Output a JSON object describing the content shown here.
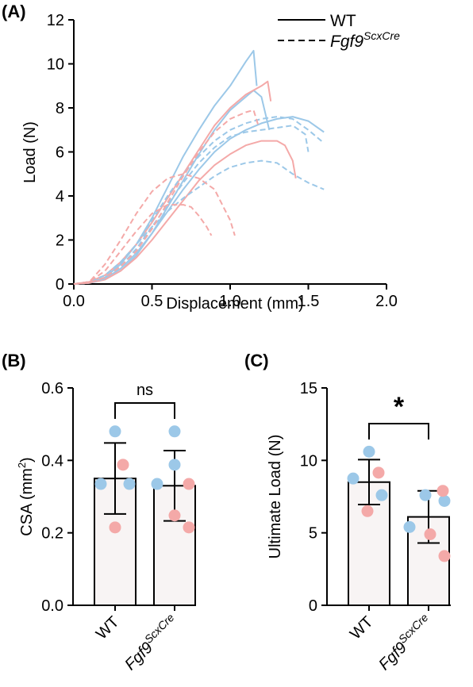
{
  "colors": {
    "blue": "#9CC8E8",
    "pink": "#F4A9A8",
    "bar_fill": "#F8F4F4",
    "axis": "#000000"
  },
  "chart_data": [
    {
      "panel": "(A)",
      "type": "line",
      "xlabel": "Displacement (mm)",
      "ylabel": "Load (N)",
      "xlim": [
        0,
        2.0
      ],
      "ylim": [
        0,
        12
      ],
      "xticks": [
        "0.0",
        "0.5",
        "1.0",
        "1.5",
        "2.0"
      ],
      "yticks": [
        "0",
        "2",
        "4",
        "6",
        "8",
        "10",
        "12"
      ],
      "legend": [
        {
          "style": "solid",
          "label": "WT"
        },
        {
          "style": "dashed",
          "label_base": "Fgf9",
          "label_sup": "ScxCre"
        }
      ],
      "series": [
        {
          "color": "blue",
          "dash": false,
          "points": [
            [
              0,
              0
            ],
            [
              0.1,
              0.05
            ],
            [
              0.2,
              0.3
            ],
            [
              0.3,
              0.9
            ],
            [
              0.4,
              1.8
            ],
            [
              0.5,
              3.0
            ],
            [
              0.6,
              4.4
            ],
            [
              0.7,
              5.8
            ],
            [
              0.8,
              7.0
            ],
            [
              0.9,
              8.1
            ],
            [
              1.0,
              9.0
            ],
            [
              1.1,
              10.1
            ],
            [
              1.15,
              10.6
            ],
            [
              1.17,
              9.0
            ]
          ]
        },
        {
          "color": "blue",
          "dash": false,
          "points": [
            [
              0,
              0
            ],
            [
              0.1,
              0.05
            ],
            [
              0.2,
              0.2
            ],
            [
              0.3,
              0.6
            ],
            [
              0.4,
              1.3
            ],
            [
              0.5,
              2.3
            ],
            [
              0.6,
              3.5
            ],
            [
              0.7,
              4.7
            ],
            [
              0.8,
              5.9
            ],
            [
              0.9,
              7.0
            ],
            [
              1.0,
              7.9
            ],
            [
              1.1,
              8.5
            ],
            [
              1.15,
              8.8
            ],
            [
              1.2,
              8.5
            ],
            [
              1.25,
              7.0
            ]
          ]
        },
        {
          "color": "blue",
          "dash": false,
          "points": [
            [
              0,
              0
            ],
            [
              0.1,
              0.05
            ],
            [
              0.2,
              0.25
            ],
            [
              0.3,
              0.7
            ],
            [
              0.4,
              1.4
            ],
            [
              0.5,
              2.3
            ],
            [
              0.6,
              3.3
            ],
            [
              0.7,
              4.3
            ],
            [
              0.8,
              5.2
            ],
            [
              0.9,
              6.0
            ],
            [
              1.0,
              6.6
            ],
            [
              1.1,
              7.0
            ],
            [
              1.2,
              7.3
            ],
            [
              1.3,
              7.5
            ],
            [
              1.4,
              7.6
            ],
            [
              1.5,
              7.4
            ],
            [
              1.6,
              6.9
            ]
          ]
        },
        {
          "color": "pink",
          "dash": false,
          "points": [
            [
              0,
              0
            ],
            [
              0.1,
              0.1
            ],
            [
              0.2,
              0.4
            ],
            [
              0.3,
              1.0
            ],
            [
              0.4,
              1.8
            ],
            [
              0.5,
              2.8
            ],
            [
              0.6,
              3.9
            ],
            [
              0.7,
              5.0
            ],
            [
              0.8,
              6.1
            ],
            [
              0.9,
              7.2
            ],
            [
              1.0,
              8.0
            ],
            [
              1.1,
              8.6
            ],
            [
              1.2,
              9.0
            ],
            [
              1.24,
              9.2
            ],
            [
              1.26,
              8.3
            ]
          ]
        },
        {
          "color": "pink",
          "dash": false,
          "points": [
            [
              0,
              0
            ],
            [
              0.1,
              0.05
            ],
            [
              0.2,
              0.2
            ],
            [
              0.3,
              0.6
            ],
            [
              0.4,
              1.2
            ],
            [
              0.5,
              2.0
            ],
            [
              0.6,
              2.9
            ],
            [
              0.7,
              3.8
            ],
            [
              0.8,
              4.7
            ],
            [
              0.9,
              5.4
            ],
            [
              1.0,
              5.9
            ],
            [
              1.1,
              6.3
            ],
            [
              1.2,
              6.5
            ],
            [
              1.3,
              6.5
            ],
            [
              1.35,
              6.3
            ],
            [
              1.4,
              5.6
            ],
            [
              1.42,
              4.8
            ]
          ]
        },
        {
          "color": "blue",
          "dash": true,
          "points": [
            [
              0,
              0
            ],
            [
              0.1,
              0.05
            ],
            [
              0.2,
              0.3
            ],
            [
              0.3,
              0.9
            ],
            [
              0.4,
              1.8
            ],
            [
              0.5,
              2.9
            ],
            [
              0.6,
              4.0
            ],
            [
              0.7,
              5.0
            ],
            [
              0.8,
              5.8
            ],
            [
              0.9,
              6.5
            ],
            [
              1.0,
              7.0
            ],
            [
              1.1,
              7.3
            ],
            [
              1.2,
              7.5
            ],
            [
              1.3,
              7.6
            ],
            [
              1.4,
              7.5
            ],
            [
              1.5,
              7.0
            ],
            [
              1.6,
              6.4
            ]
          ]
        },
        {
          "color": "blue",
          "dash": true,
          "points": [
            [
              0,
              0
            ],
            [
              0.1,
              0.05
            ],
            [
              0.2,
              0.25
            ],
            [
              0.3,
              0.8
            ],
            [
              0.4,
              1.6
            ],
            [
              0.5,
              2.6
            ],
            [
              0.6,
              3.6
            ],
            [
              0.7,
              4.6
            ],
            [
              0.8,
              5.5
            ],
            [
              0.9,
              6.2
            ],
            [
              1.0,
              6.7
            ],
            [
              1.1,
              6.9
            ],
            [
              1.2,
              7.0
            ],
            [
              1.3,
              7.1
            ],
            [
              1.4,
              7.2
            ],
            [
              1.48,
              6.8
            ],
            [
              1.5,
              6.0
            ]
          ]
        },
        {
          "color": "blue",
          "dash": true,
          "points": [
            [
              0,
              0
            ],
            [
              0.1,
              0.1
            ],
            [
              0.2,
              0.4
            ],
            [
              0.3,
              1.0
            ],
            [
              0.4,
              1.8
            ],
            [
              0.5,
              2.6
            ],
            [
              0.6,
              3.3
            ],
            [
              0.7,
              3.9
            ],
            [
              0.8,
              4.4
            ],
            [
              0.9,
              4.9
            ],
            [
              1.0,
              5.3
            ],
            [
              1.1,
              5.5
            ],
            [
              1.2,
              5.6
            ],
            [
              1.3,
              5.5
            ],
            [
              1.4,
              5.0
            ],
            [
              1.5,
              4.6
            ],
            [
              1.6,
              4.3
            ]
          ]
        },
        {
          "color": "pink",
          "dash": true,
          "points": [
            [
              0,
              0
            ],
            [
              0.1,
              0.1
            ],
            [
              0.2,
              0.9
            ],
            [
              0.3,
              2.0
            ],
            [
              0.4,
              3.2
            ],
            [
              0.5,
              4.2
            ],
            [
              0.6,
              4.8
            ],
            [
              0.7,
              5.0
            ],
            [
              0.8,
              4.8
            ],
            [
              0.9,
              4.3
            ],
            [
              0.95,
              3.6
            ],
            [
              1.0,
              2.9
            ],
            [
              1.03,
              2.2
            ]
          ]
        },
        {
          "color": "pink",
          "dash": true,
          "points": [
            [
              0,
              0
            ],
            [
              0.1,
              0.1
            ],
            [
              0.2,
              0.6
            ],
            [
              0.3,
              1.5
            ],
            [
              0.4,
              2.4
            ],
            [
              0.5,
              3.2
            ],
            [
              0.6,
              3.6
            ],
            [
              0.7,
              3.6
            ],
            [
              0.75,
              3.5
            ],
            [
              0.8,
              3.1
            ],
            [
              0.85,
              2.6
            ],
            [
              0.88,
              2.2
            ]
          ]
        },
        {
          "color": "pink",
          "dash": true,
          "points": [
            [
              0,
              0
            ],
            [
              0.1,
              0.05
            ],
            [
              0.2,
              0.3
            ],
            [
              0.3,
              0.8
            ],
            [
              0.4,
              1.5
            ],
            [
              0.5,
              2.5
            ],
            [
              0.6,
              3.7
            ],
            [
              0.7,
              4.9
            ],
            [
              0.8,
              6.0
            ],
            [
              0.9,
              6.9
            ],
            [
              1.0,
              7.5
            ],
            [
              1.1,
              7.8
            ],
            [
              1.15,
              7.9
            ],
            [
              1.18,
              7.2
            ]
          ]
        }
      ]
    },
    {
      "panel": "(B)",
      "type": "bar",
      "ylabel_base": "CSA (mm",
      "ylabel_sup": "2",
      "ylabel_end": ")",
      "ylim": [
        0,
        0.6
      ],
      "yticks": [
        "0.0",
        "0.2",
        "0.4",
        "0.6"
      ],
      "categories": [
        {
          "label": "WT"
        },
        {
          "label_base": "Fgf9",
          "label_sup": "ScxCre"
        }
      ],
      "values": [
        0.35,
        0.33
      ],
      "sd": [
        0.098,
        0.097
      ],
      "significance": "ns",
      "points": [
        [
          {
            "v": 0.48,
            "c": "blue"
          },
          {
            "v": 0.335,
            "c": "blue"
          },
          {
            "v": 0.335,
            "c": "blue"
          },
          {
            "v": 0.388,
            "c": "pink"
          },
          {
            "v": 0.215,
            "c": "pink"
          }
        ],
        [
          {
            "v": 0.48,
            "c": "blue"
          },
          {
            "v": 0.388,
            "c": "blue"
          },
          {
            "v": 0.335,
            "c": "blue"
          },
          {
            "v": 0.335,
            "c": "pink"
          },
          {
            "v": 0.248,
            "c": "pink"
          },
          {
            "v": 0.215,
            "c": "pink"
          }
        ]
      ]
    },
    {
      "panel": "(C)",
      "type": "bar",
      "ylabel": "Ultimate Load (N)",
      "ylim": [
        0,
        15
      ],
      "yticks": [
        "0",
        "5",
        "10",
        "15"
      ],
      "categories": [
        {
          "label": "WT"
        },
        {
          "label_base": "Fgf9",
          "label_sup": "ScxCre"
        }
      ],
      "values": [
        8.5,
        6.1
      ],
      "sd": [
        1.55,
        1.8
      ],
      "significance": "*",
      "points": [
        [
          {
            "v": 10.6,
            "c": "blue"
          },
          {
            "v": 8.75,
            "c": "blue"
          },
          {
            "v": 7.6,
            "c": "blue"
          },
          {
            "v": 9.15,
            "c": "pink"
          },
          {
            "v": 6.5,
            "c": "pink"
          }
        ],
        [
          {
            "v": 7.6,
            "c": "blue"
          },
          {
            "v": 7.2,
            "c": "blue"
          },
          {
            "v": 5.4,
            "c": "blue"
          },
          {
            "v": 7.9,
            "c": "pink"
          },
          {
            "v": 4.9,
            "c": "pink"
          },
          {
            "v": 3.4,
            "c": "pink"
          }
        ]
      ]
    }
  ]
}
